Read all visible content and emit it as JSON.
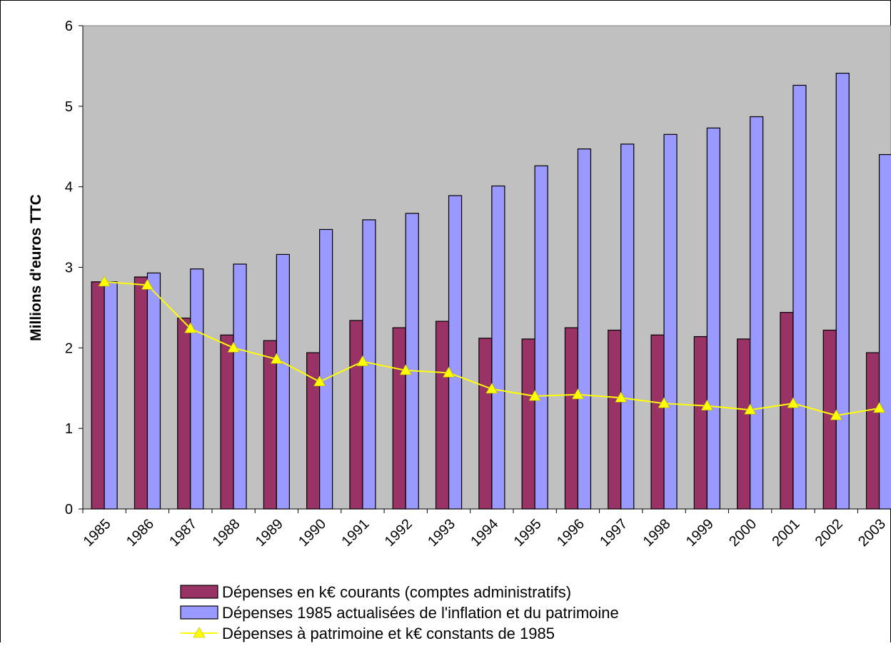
{
  "chart_data": {
    "type": "bar",
    "title": "",
    "xlabel": "",
    "ylabel": "Millions d'euros TTC",
    "ylim": [
      0,
      6
    ],
    "yticks": [
      0,
      1,
      2,
      3,
      4,
      5,
      6
    ],
    "grid": false,
    "plot_background": "#c0c0c0",
    "legend_position": "bottom",
    "categories": [
      "1985",
      "1986",
      "1987",
      "1988",
      "1989",
      "1990",
      "1991",
      "1992",
      "1993",
      "1994",
      "1995",
      "1996",
      "1997",
      "1998",
      "1999",
      "2000",
      "2001",
      "2002",
      "2003"
    ],
    "series": [
      {
        "name": "Dépenses en k€ courants (comptes administratifs)",
        "type": "bar",
        "color": "#993366",
        "values": [
          2.82,
          2.88,
          2.37,
          2.16,
          2.09,
          1.94,
          2.34,
          2.25,
          2.33,
          2.12,
          2.11,
          2.25,
          2.22,
          2.16,
          2.14,
          2.11,
          2.44,
          2.22,
          1.94
        ]
      },
      {
        "name": "Dépenses 1985 actualisées de l'inflation et du patrimoine",
        "type": "bar",
        "color": "#9999ff",
        "values": [
          2.82,
          2.93,
          2.98,
          3.04,
          3.16,
          3.47,
          3.59,
          3.67,
          3.89,
          4.01,
          4.26,
          4.47,
          4.53,
          4.65,
          4.73,
          4.87,
          5.26,
          5.41,
          4.4
        ]
      },
      {
        "name": "Dépenses à patrimoine et k€ constants de 1985",
        "type": "line",
        "color": "#ffff00",
        "values": [
          2.82,
          2.78,
          2.24,
          2.0,
          1.86,
          1.58,
          1.83,
          1.72,
          1.69,
          1.49,
          1.4,
          1.42,
          1.38,
          1.31,
          1.28,
          1.23,
          1.31,
          1.16,
          1.25
        ]
      }
    ]
  }
}
